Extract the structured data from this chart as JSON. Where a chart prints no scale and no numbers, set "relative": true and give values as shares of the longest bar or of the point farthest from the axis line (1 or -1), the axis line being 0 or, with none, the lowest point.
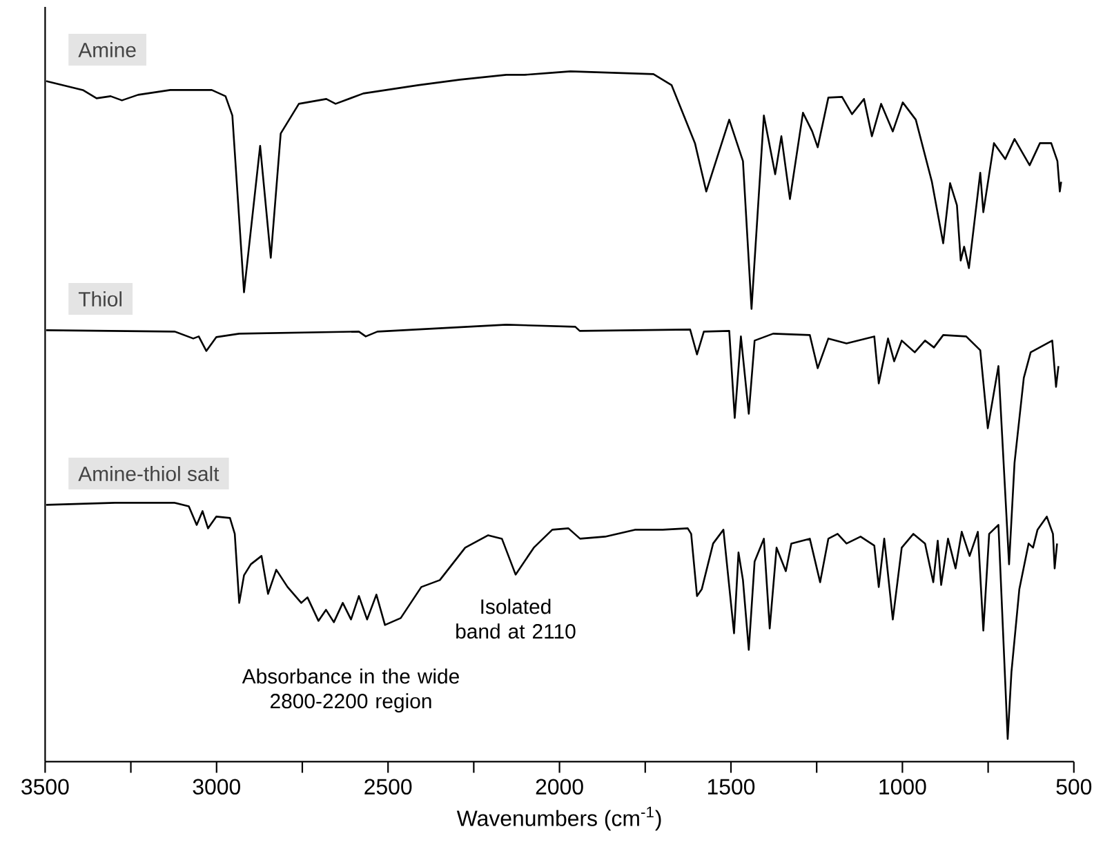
{
  "chart_data": {
    "type": "line",
    "relative": true,
    "xlabel": "Wavenumbers (cm$^{-1}$)",
    "xlim": [
      3500,
      500
    ],
    "xticks": [
      3500,
      {
        "value": 3250,
        "label": null
      },
      3000,
      {
        "value": 2750,
        "label": null
      },
      2500,
      {
        "value": 2250,
        "label": null
      },
      2000,
      {
        "value": 1750,
        "label": null
      },
      1500,
      {
        "value": 1250,
        "label": null
      },
      1000,
      {
        "value": 750,
        "label": null
      },
      500
    ],
    "tick_labels": "x",
    "grid": false,
    "legend": false,
    "annotations": [
      {
        "text": "Absorbance in the wide 2800-2200 region",
        "x": 2608,
        "y": 0.206
      },
      {
        "text": "Isolated band at 2110",
        "x": 2128,
        "y": 0.271
      }
    ],
    "series": [
      {
        "name": "Amine",
        "color": "#000000",
        "x": [
          3497,
          3390,
          3350,
          3309,
          3276,
          3229,
          3135,
          3014,
          2974,
          2954,
          2920,
          2873,
          2842,
          2813,
          2760,
          2680,
          2653,
          2572,
          2412,
          2290,
          2155,
          2102,
          2021,
          1968,
          1726,
          1673,
          1605,
          1572,
          1505,
          1465,
          1440,
          1404,
          1371,
          1353,
          1328,
          1290,
          1263,
          1247,
          1216,
          1176,
          1147,
          1112,
          1089,
          1062,
          1028,
          999,
          961,
          914,
          881,
          861,
          841,
          830,
          820,
          806,
          773,
          764,
          733,
          700,
          673,
          629,
          599,
          566,
          548,
          541,
          537
        ],
        "values": [
          0.986,
          0.973,
          0.961,
          0.964,
          0.958,
          0.966,
          0.973,
          0.973,
          0.964,
          0.936,
          0.68,
          0.892,
          0.73,
          0.91,
          0.953,
          0.96,
          0.953,
          0.968,
          0.98,
          0.988,
          0.995,
          0.995,
          0.998,
          1,
          0.996,
          0.98,
          0.896,
          0.826,
          0.93,
          0.87,
          0.656,
          0.936,
          0.851,
          0.906,
          0.815,
          0.94,
          0.913,
          0.89,
          0.962,
          0.963,
          0.938,
          0.96,
          0.906,
          0.953,
          0.913,
          0.955,
          0.93,
          0.84,
          0.751,
          0.838,
          0.806,
          0.726,
          0.746,
          0.715,
          0.853,
          0.796,
          0.896,
          0.873,
          0.902,
          0.864,
          0.896,
          0.896,
          0.87,
          0.826,
          0.84
        ]
      },
      {
        "name": "Thiol",
        "color": "#000000",
        "x": [
          3497,
          3122,
          3068,
          3052,
          3030,
          3001,
          2934,
          2585,
          2565,
          2531,
          2155,
          1954,
          1941,
          1619,
          1599,
          1579,
          1505,
          1489,
          1471,
          1448,
          1431,
          1377,
          1270,
          1247,
          1216,
          1163,
          1082,
          1069,
          1042,
          1024,
          1002,
          964,
          934,
          908,
          881,
          814,
          773,
          751,
          720,
          689,
          673,
          646,
          626,
          563,
          552,
          545
        ],
        "values": [
          0.625,
          0.623,
          0.613,
          0.616,
          0.595,
          0.615,
          0.62,
          0.623,
          0.616,
          0.623,
          0.633,
          0.63,
          0.624,
          0.626,
          0.59,
          0.623,
          0.624,
          0.498,
          0.616,
          0.504,
          0.61,
          0.62,
          0.618,
          0.57,
          0.613,
          0.606,
          0.616,
          0.548,
          0.613,
          0.58,
          0.61,
          0.593,
          0.61,
          0.6,
          0.618,
          0.616,
          0.596,
          0.483,
          0.573,
          0.286,
          0.433,
          0.556,
          0.593,
          0.61,
          0.543,
          0.573
        ]
      },
      {
        "name": "Amine-thiol salt",
        "color": "#000000",
        "x": [
          3497,
          3296,
          3122,
          3081,
          3058,
          3041,
          3025,
          3001,
          2961,
          2947,
          2934,
          2920,
          2900,
          2869,
          2850,
          2826,
          2793,
          2753,
          2735,
          2703,
          2681,
          2658,
          2632,
          2608,
          2585,
          2561,
          2534,
          2509,
          2463,
          2403,
          2349,
          2275,
          2208,
          2168,
          2128,
          2075,
          2021,
          1974,
          1940,
          1867,
          1780,
          1699,
          1626,
          1616,
          1599,
          1585,
          1552,
          1522,
          1491,
          1478,
          1465,
          1448,
          1431,
          1404,
          1387,
          1367,
          1340,
          1324,
          1270,
          1240,
          1216,
          1189,
          1163,
          1122,
          1082,
          1069,
          1053,
          1028,
          1002,
          968,
          934,
          910,
          897,
          887,
          867,
          845,
          827,
          804,
          780,
          764,
          747,
          720,
          693,
          682,
          659,
          632,
          619,
          606,
          579,
          561,
          556,
          549
        ],
        "values": [
          0.372,
          0.375,
          0.375,
          0.37,
          0.343,
          0.363,
          0.338,
          0.355,
          0.353,
          0.33,
          0.23,
          0.27,
          0.286,
          0.298,
          0.243,
          0.278,
          0.253,
          0.23,
          0.238,
          0.204,
          0.22,
          0.202,
          0.23,
          0.206,
          0.24,
          0.206,
          0.242,
          0.198,
          0.208,
          0.253,
          0.263,
          0.31,
          0.328,
          0.323,
          0.271,
          0.31,
          0.336,
          0.338,
          0.323,
          0.326,
          0.336,
          0.336,
          0.338,
          0.33,
          0.24,
          0.25,
          0.316,
          0.336,
          0.186,
          0.303,
          0.263,
          0.162,
          0.29,
          0.323,
          0.193,
          0.31,
          0.276,
          0.316,
          0.323,
          0.26,
          0.323,
          0.33,
          0.316,
          0.326,
          0.313,
          0.253,
          0.323,
          0.206,
          0.31,
          0.33,
          0.316,
          0.26,
          0.32,
          0.256,
          0.323,
          0.28,
          0.333,
          0.298,
          0.333,
          0.19,
          0.33,
          0.343,
          0.033,
          0.13,
          0.25,
          0.316,
          0.31,
          0.336,
          0.355,
          0.33,
          0.28,
          0.316
        ]
      }
    ]
  }
}
